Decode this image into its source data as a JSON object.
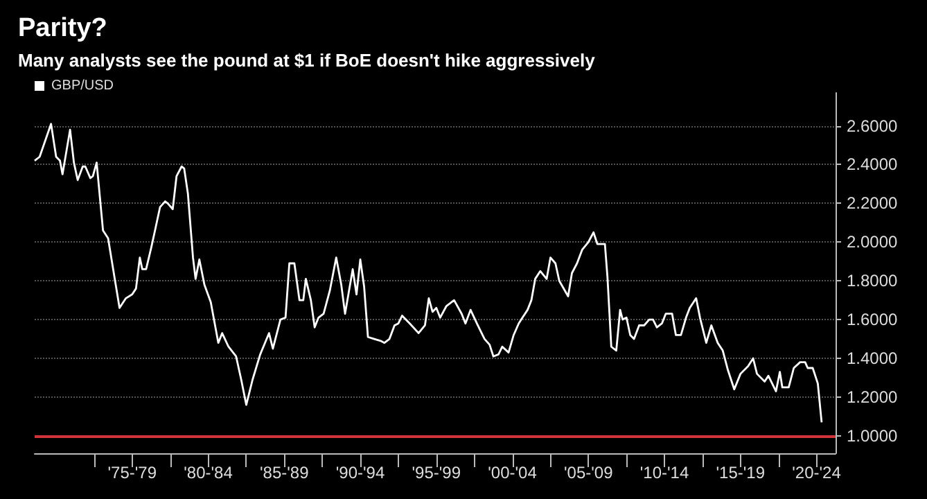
{
  "chart_data": {
    "type": "line",
    "title": "Parity?",
    "subtitle": "Many analysts see the pound at $1 if BoE doesn't hike aggressively",
    "series": [
      {
        "name": "GBP/USD",
        "color": "#ffffff",
        "x": [
          "1971-02",
          "1971-06",
          "1972-03",
          "1972-07",
          "1972-10",
          "1972-12",
          "1973-06",
          "1973-09",
          "1973-12",
          "1974-04",
          "1974-06",
          "1974-10",
          "1974-12",
          "1975-03",
          "1975-08",
          "1975-12",
          "1976-05",
          "1976-09",
          "1977-02",
          "1977-07",
          "1977-10",
          "1978-01",
          "1978-03",
          "1978-06",
          "1978-10",
          "1979-01",
          "1979-05",
          "1979-09",
          "1979-11",
          "1980-03",
          "1980-06",
          "1980-10",
          "1980-12",
          "1981-03",
          "1981-07",
          "1981-09",
          "1981-12",
          "1982-04",
          "1982-09",
          "1983-03",
          "1983-06",
          "1983-11",
          "1984-05",
          "1984-09",
          "1985-01",
          "1985-06",
          "1985-12",
          "1986-07",
          "1986-10",
          "1987-04",
          "1987-08",
          "1987-11",
          "1988-03",
          "1988-07",
          "1988-10",
          "1988-12",
          "1989-04",
          "1989-07",
          "1989-10",
          "1990-02",
          "1990-07",
          "1990-12",
          "1991-04",
          "1991-07",
          "1992-01",
          "1992-04",
          "1992-07",
          "1992-10",
          "1993-01",
          "1993-06",
          "1993-11",
          "1994-02",
          "1994-06",
          "1994-10",
          "1995-01",
          "1995-04",
          "1995-10",
          "1996-05",
          "1996-10",
          "1997-01",
          "1997-04",
          "1997-07",
          "1997-10",
          "1998-03",
          "1998-09",
          "1999-03",
          "1999-06",
          "1999-10",
          "2000-03",
          "2000-09",
          "2001-01",
          "2001-04",
          "2001-08",
          "2001-11",
          "2002-04",
          "2002-08",
          "2002-12",
          "2003-03",
          "2003-07",
          "2003-10",
          "2004-01",
          "2004-05",
          "2004-10",
          "2005-01",
          "2005-05",
          "2005-08",
          "2006-03",
          "2006-06",
          "2006-10",
          "2007-02",
          "2007-07",
          "2007-11",
          "2008-02",
          "2008-08",
          "2008-10",
          "2009-01",
          "2009-05",
          "2009-08",
          "2009-10",
          "2010-01",
          "2010-04",
          "2010-07",
          "2010-11",
          "2011-03",
          "2011-07",
          "2011-10",
          "2012-01",
          "2012-05",
          "2012-08",
          "2013-01",
          "2013-04",
          "2013-08",
          "2013-12",
          "2014-03",
          "2014-08",
          "2014-11",
          "2015-04",
          "2015-08",
          "2016-01",
          "2016-05",
          "2016-09",
          "2017-02",
          "2017-07",
          "2018-01",
          "2018-05",
          "2018-08",
          "2019-02",
          "2019-05",
          "2019-11",
          "2020-02",
          "2020-04",
          "2020-09",
          "2021-01",
          "2021-06",
          "2021-10",
          "2021-12",
          "2022-04",
          "2022-08",
          "2022-11"
        ],
        "values": [
          2.42,
          2.44,
          2.61,
          2.44,
          2.42,
          2.35,
          2.58,
          2.41,
          2.32,
          2.39,
          2.39,
          2.33,
          2.34,
          2.41,
          2.06,
          2.02,
          1.82,
          1.66,
          1.71,
          1.73,
          1.76,
          1.92,
          1.86,
          1.86,
          1.97,
          2.06,
          2.18,
          2.21,
          2.2,
          2.17,
          2.34,
          2.39,
          2.38,
          2.25,
          1.92,
          1.81,
          1.91,
          1.78,
          1.69,
          1.48,
          1.53,
          1.46,
          1.41,
          1.29,
          1.16,
          1.29,
          1.42,
          1.53,
          1.45,
          1.6,
          1.61,
          1.89,
          1.89,
          1.7,
          1.7,
          1.81,
          1.7,
          1.56,
          1.61,
          1.63,
          1.75,
          1.92,
          1.78,
          1.63,
          1.86,
          1.73,
          1.91,
          1.77,
          1.51,
          1.5,
          1.49,
          1.48,
          1.5,
          1.57,
          1.58,
          1.62,
          1.58,
          1.53,
          1.57,
          1.71,
          1.64,
          1.66,
          1.61,
          1.67,
          1.7,
          1.63,
          1.58,
          1.65,
          1.58,
          1.5,
          1.47,
          1.41,
          1.42,
          1.46,
          1.43,
          1.52,
          1.58,
          1.61,
          1.65,
          1.7,
          1.81,
          1.85,
          1.81,
          1.92,
          1.89,
          1.8,
          1.72,
          1.84,
          1.89,
          1.96,
          2.0,
          2.05,
          1.99,
          1.99,
          1.82,
          1.46,
          1.44,
          1.65,
          1.6,
          1.61,
          1.52,
          1.5,
          1.57,
          1.57,
          1.6,
          1.6,
          1.56,
          1.58,
          1.63,
          1.63,
          1.52,
          1.52,
          1.61,
          1.66,
          1.71,
          1.61,
          1.48,
          1.57,
          1.48,
          1.44,
          1.34,
          1.24,
          1.32,
          1.36,
          1.4,
          1.32,
          1.28,
          1.31,
          1.23,
          1.33,
          1.25,
          1.25,
          1.35,
          1.38,
          1.38,
          1.35,
          1.35,
          1.27,
          1.07
        ]
      }
    ],
    "xlim": [
      "1971-02",
      "2023-10"
    ],
    "xticks": [
      {
        "value": "1975-01",
        "label": null
      },
      {
        "value": "1977-07",
        "label": "'75-'79"
      },
      {
        "value": "1980-01",
        "label": null
      },
      {
        "value": "1982-07",
        "label": "'80-'84"
      },
      {
        "value": "1985-01",
        "label": null
      },
      {
        "value": "1987-07",
        "label": "'85-'89"
      },
      {
        "value": "1990-01",
        "label": null
      },
      {
        "value": "1992-07",
        "label": "'90-'94"
      },
      {
        "value": "1995-01",
        "label": null
      },
      {
        "value": "1997-07",
        "label": "'95-'99"
      },
      {
        "value": "2000-01",
        "label": null
      },
      {
        "value": "2002-07",
        "label": "'00-'04"
      },
      {
        "value": "2005-01",
        "label": null
      },
      {
        "value": "2007-07",
        "label": "'05-'09"
      },
      {
        "value": "2010-01",
        "label": null
      },
      {
        "value": "2012-07",
        "label": "'10-'14"
      },
      {
        "value": "2015-01",
        "label": null
      },
      {
        "value": "2017-07",
        "label": "'15-'19"
      },
      {
        "value": "2020-01",
        "label": null
      },
      {
        "value": "2022-07",
        "label": "'20-'24"
      }
    ],
    "ylim": [
      0.91,
      2.77
    ],
    "yticks": [
      {
        "value": 1,
        "label": "1.0000"
      },
      {
        "value": 1.2,
        "label": "1.2000"
      },
      {
        "value": 1.4,
        "label": "1.4000"
      },
      {
        "value": 1.6,
        "label": "1.6000"
      },
      {
        "value": 1.8,
        "label": "1.8000"
      },
      {
        "value": 2,
        "label": "2.0000"
      },
      {
        "value": 2.2,
        "label": "2.2000"
      },
      {
        "value": 2.4,
        "label": "2.4000"
      },
      {
        "value": 2.6,
        "label": "2.6000"
      }
    ],
    "ref_lines": [
      {
        "axis": "y",
        "value": 1,
        "color": "#d0343a"
      }
    ],
    "grid": "y",
    "legend": "top left",
    "marker": "none",
    "line_style": "solid"
  }
}
